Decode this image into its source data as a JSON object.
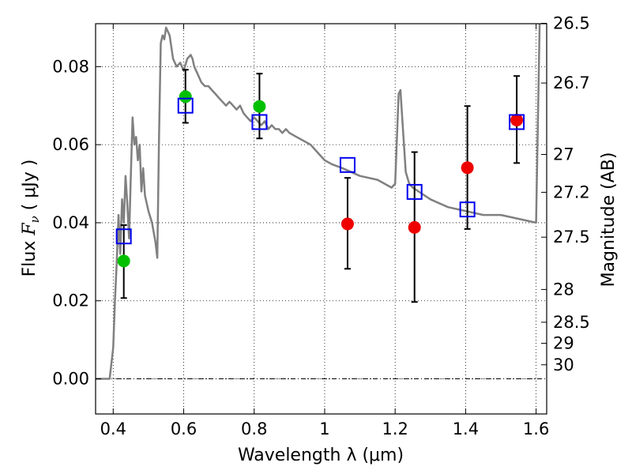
{
  "chart_data": {
    "type": "scatter",
    "xlabel": "Wavelength  λ (μm)",
    "ylabel": "Flux  Fν  ( μJy )",
    "ylabel_parts": {
      "prefix": "Flux  ",
      "math": "F",
      "math_sub": "ν",
      "suffix": "  ( μJy )"
    },
    "ylabel_right": "Magnitude (AB)",
    "xlim": [
      0.35,
      1.63
    ],
    "ylim": [
      -0.009,
      0.091
    ],
    "x_ticks": [
      0.4,
      0.6,
      0.8,
      1.0,
      1.2,
      1.4,
      1.6
    ],
    "x_tick_labels": [
      "0.4",
      "0.6",
      "0.8",
      "1",
      "1.2",
      "1.4",
      "1.6"
    ],
    "y_ticks": [
      0.0,
      0.02,
      0.04,
      0.06,
      0.08
    ],
    "y_tick_labels": [
      "0.00",
      "0.02",
      "0.04",
      "0.06",
      "0.08"
    ],
    "right_ticks": [
      {
        "label": "26.5",
        "flux": 0.0911
      },
      {
        "label": "26.7",
        "flux": 0.0758
      },
      {
        "label": "27",
        "flux": 0.0575
      },
      {
        "label": "27.2",
        "flux": 0.0478
      },
      {
        "label": "27.5",
        "flux": 0.0363
      },
      {
        "label": "28",
        "flux": 0.0229
      },
      {
        "label": "28.5",
        "flux": 0.0145
      },
      {
        "label": "29",
        "flux": 0.0091
      },
      {
        "label": "30",
        "flux": 0.0036
      }
    ],
    "grid": true,
    "model_spectrum": {
      "color": "#808080",
      "x": [
        0.35,
        0.39,
        0.4,
        0.405,
        0.41,
        0.415,
        0.42,
        0.425,
        0.43,
        0.435,
        0.44,
        0.445,
        0.45,
        0.455,
        0.46,
        0.465,
        0.47,
        0.475,
        0.48,
        0.485,
        0.49,
        0.5,
        0.51,
        0.52,
        0.525,
        0.53,
        0.535,
        0.54,
        0.545,
        0.55,
        0.56,
        0.57,
        0.58,
        0.59,
        0.6,
        0.61,
        0.62,
        0.625,
        0.63,
        0.64,
        0.65,
        0.66,
        0.67,
        0.68,
        0.69,
        0.7,
        0.71,
        0.72,
        0.73,
        0.74,
        0.75,
        0.76,
        0.77,
        0.78,
        0.79,
        0.8,
        0.81,
        0.82,
        0.83,
        0.84,
        0.85,
        0.86,
        0.87,
        0.88,
        0.89,
        0.9,
        0.92,
        0.94,
        0.96,
        0.98,
        1.0,
        1.02,
        1.05,
        1.1,
        1.15,
        1.19,
        1.2,
        1.21,
        1.215,
        1.22,
        1.23,
        1.24,
        1.25,
        1.3,
        1.35,
        1.4,
        1.45,
        1.5,
        1.55,
        1.6,
        1.605,
        1.61
      ],
      "y": [
        0.0,
        0.0,
        0.008,
        0.02,
        0.03,
        0.042,
        0.032,
        0.046,
        0.04,
        0.052,
        0.045,
        0.036,
        0.052,
        0.067,
        0.06,
        0.062,
        0.056,
        0.06,
        0.048,
        0.054,
        0.047,
        0.043,
        0.04,
        0.035,
        0.031,
        0.062,
        0.086,
        0.088,
        0.087,
        0.09,
        0.088,
        0.082,
        0.08,
        0.081,
        0.079,
        0.082,
        0.083,
        0.082,
        0.08,
        0.078,
        0.076,
        0.075,
        0.075,
        0.074,
        0.073,
        0.072,
        0.071,
        0.07,
        0.071,
        0.07,
        0.069,
        0.07,
        0.068,
        0.067,
        0.066,
        0.067,
        0.066,
        0.065,
        0.066,
        0.064,
        0.065,
        0.064,
        0.064,
        0.063,
        0.064,
        0.063,
        0.062,
        0.061,
        0.06,
        0.058,
        0.056,
        0.055,
        0.054,
        0.052,
        0.051,
        0.049,
        0.05,
        0.073,
        0.074,
        0.067,
        0.053,
        0.05,
        0.049,
        0.046,
        0.044,
        0.043,
        0.042,
        0.042,
        0.041,
        0.04,
        0.065,
        0.092
      ]
    },
    "series": [
      {
        "name": "",
        "marker": "circle",
        "color": "#00c000",
        "points": [
          {
            "x": 0.43,
            "y": 0.0302
          },
          {
            "x": 0.605,
            "y": 0.0723
          },
          {
            "x": 0.815,
            "y": 0.0698
          }
        ]
      },
      {
        "name": "",
        "marker": "circle",
        "color": "#ee0000",
        "points": [
          {
            "x": 1.065,
            "y": 0.0397
          },
          {
            "x": 1.255,
            "y": 0.0388
          },
          {
            "x": 1.405,
            "y": 0.0541
          },
          {
            "x": 1.545,
            "y": 0.0663
          }
        ]
      },
      {
        "name": "",
        "marker": "open-square",
        "color": "#0000ee",
        "points": [
          {
            "x": 0.43,
            "y": 0.0365
          },
          {
            "x": 0.605,
            "y": 0.07
          },
          {
            "x": 0.815,
            "y": 0.0658
          },
          {
            "x": 1.065,
            "y": 0.0548
          },
          {
            "x": 1.255,
            "y": 0.0479
          },
          {
            "x": 1.405,
            "y": 0.0434
          },
          {
            "x": 1.545,
            "y": 0.0658
          }
        ]
      }
    ],
    "error_bars": [
      {
        "x": 0.43,
        "low": 0.0207,
        "high": 0.0394
      },
      {
        "x": 0.605,
        "low": 0.0656,
        "high": 0.0792
      },
      {
        "x": 0.815,
        "low": 0.0616,
        "high": 0.0782
      },
      {
        "x": 1.065,
        "low": 0.0282,
        "high": 0.0515
      },
      {
        "x": 1.255,
        "low": 0.0197,
        "high": 0.0581
      },
      {
        "x": 1.405,
        "low": 0.0384,
        "high": 0.0699
      },
      {
        "x": 1.545,
        "low": 0.0553,
        "high": 0.0776
      }
    ],
    "zero_line": 0.0
  }
}
